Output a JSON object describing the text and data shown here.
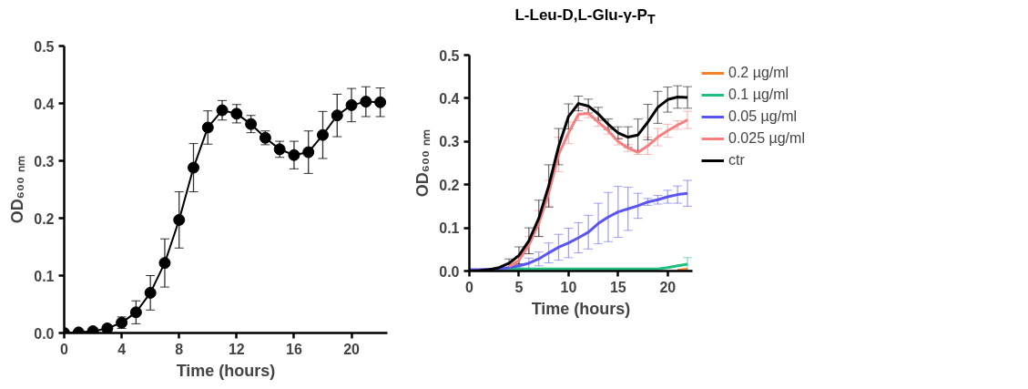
{
  "chart_data": [
    {
      "type": "line",
      "xlabel": "Time (hours)",
      "ylabel": "OD₆₀₀ ₙₘ",
      "x": [
        0,
        1,
        2,
        3,
        4,
        5,
        6,
        7,
        8,
        9,
        10,
        11,
        12,
        13,
        14,
        15,
        16,
        17,
        18,
        19,
        20,
        21,
        22
      ],
      "xlim": [
        0,
        22.5
      ],
      "ylim": [
        0,
        0.5
      ],
      "xticks": [
        0,
        4,
        8,
        12,
        16,
        20
      ],
      "yticks": [
        {
          "value": 0,
          "label": "0.0"
        },
        0.1,
        0.2,
        0.3,
        0.4,
        0.5
      ],
      "marker": "circle",
      "grid": false,
      "legend": false,
      "series": [
        {
          "color": "#000000",
          "values": [
            0,
            0.001,
            0.003,
            0.008,
            0.018,
            0.036,
            0.07,
            0.122,
            0.197,
            0.288,
            0.358,
            0.388,
            0.382,
            0.364,
            0.34,
            0.32,
            0.31,
            0.315,
            0.345,
            0.379,
            0.397,
            0.403,
            0.402
          ],
          "errors": [
            null,
            null,
            null,
            null,
            0.01,
            0.02,
            0.03,
            0.042,
            0.049,
            0.042,
            0.029,
            0.017,
            0.016,
            0.015,
            0.012,
            0.014,
            0.024,
            0.037,
            0.041,
            0.037,
            0.029,
            0.026,
            0.025
          ]
        }
      ]
    },
    {
      "type": "line",
      "title": "L-Leu-D,L-Glu-γ-P$_{T}$",
      "xlabel": "Time (hours)",
      "ylabel": "OD₆₀₀ ₙₘ",
      "x": [
        0,
        1,
        2,
        3,
        4,
        5,
        6,
        7,
        8,
        9,
        10,
        11,
        12,
        13,
        14,
        15,
        16,
        17,
        18,
        19,
        20,
        21,
        22
      ],
      "xlim": [
        0,
        22.5
      ],
      "ylim": [
        0,
        0.5
      ],
      "xticks": [
        0,
        5,
        10,
        15,
        20
      ],
      "yticks": [
        {
          "value": 0,
          "label": "0.0"
        },
        0.1,
        0.2,
        0.3,
        0.4,
        0.5
      ],
      "marker": "none",
      "grid": false,
      "legend": "right",
      "series": [
        {
          "name": "0.2 µg/ml",
          "color": "#f5822a",
          "values": [
            null,
            null,
            null,
            null,
            null,
            null,
            null,
            null,
            null,
            null,
            null,
            null,
            null,
            null,
            null,
            null,
            null,
            null,
            null,
            null,
            null,
            0.002,
            0.004
          ]
        },
        {
          "name": "0.1 µg/ml",
          "color": "#1fbf7f",
          "values": [
            null,
            null,
            null,
            0.005,
            0.005,
            0.005,
            0.005,
            0.005,
            0.005,
            0.005,
            0.005,
            0.005,
            0.005,
            0.005,
            0.005,
            0.005,
            0.005,
            0.005,
            0.005,
            0.005,
            0.008,
            0.012,
            0.016
          ],
          "errors": [
            null,
            null,
            null,
            null,
            null,
            null,
            null,
            null,
            null,
            null,
            null,
            null,
            null,
            null,
            null,
            null,
            null,
            null,
            null,
            null,
            null,
            null,
            0.015
          ]
        },
        {
          "name": "0.05 µg/ml",
          "color": "#5a55f0",
          "values": [
            0.003,
            0.003,
            0.004,
            0.005,
            0.008,
            0.012,
            0.018,
            0.028,
            0.042,
            0.055,
            0.065,
            0.077,
            0.09,
            0.11,
            0.125,
            0.137,
            0.144,
            0.151,
            0.16,
            0.165,
            0.172,
            0.177,
            0.18
          ],
          "errors": [
            null,
            null,
            null,
            null,
            null,
            0.005,
            0.012,
            0.016,
            0.023,
            0.03,
            0.034,
            0.035,
            0.039,
            0.047,
            0.057,
            0.059,
            0.05,
            0.029,
            0.008,
            0.01,
            0.015,
            0.02,
            0.03
          ]
        },
        {
          "name": "0.025 µg/ml",
          "color": "#f77f7f",
          "values": [
            null,
            null,
            null,
            null,
            0.01,
            0.025,
            0.06,
            0.11,
            0.18,
            0.27,
            0.32,
            0.363,
            0.365,
            0.345,
            0.325,
            0.3,
            0.285,
            0.275,
            0.29,
            0.31,
            0.325,
            0.338,
            0.35
          ],
          "errors": [
            null,
            null,
            null,
            null,
            null,
            0.01,
            0.02,
            0.03,
            0.03,
            0.04,
            0.025,
            0.015,
            0.01,
            0.01,
            0.008,
            0.008,
            0.008,
            0.005,
            0.02,
            0.02,
            0.015,
            0.01,
            0.02
          ]
        },
        {
          "name": "ctr",
          "color": "#000000",
          "values": [
            0,
            0.001,
            0.003,
            0.008,
            0.018,
            0.036,
            0.07,
            0.122,
            0.197,
            0.288,
            0.358,
            0.388,
            0.382,
            0.364,
            0.34,
            0.32,
            0.31,
            0.315,
            0.345,
            0.379,
            0.397,
            0.403,
            0.402
          ],
          "errors": [
            null,
            null,
            null,
            null,
            0.01,
            0.02,
            0.03,
            0.042,
            0.049,
            0.042,
            0.029,
            0.017,
            0.016,
            0.015,
            0.012,
            0.014,
            0.024,
            0.037,
            0.041,
            0.037,
            0.029,
            0.026,
            0.025
          ]
        }
      ]
    }
  ]
}
